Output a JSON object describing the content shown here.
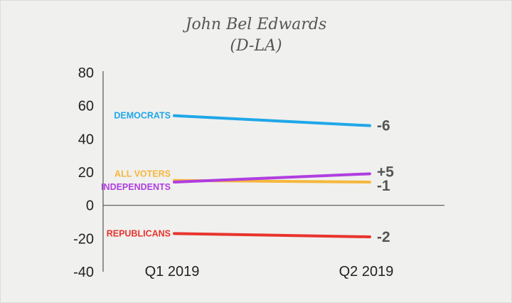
{
  "chart_data": {
    "type": "line",
    "title": "John Bel Edwards",
    "subtitle": "(D-LA)",
    "xlabel": "",
    "ylabel": "",
    "categories": [
      "Q1 2019",
      "Q2 2019"
    ],
    "ylim": [
      -40,
      80
    ],
    "yticks": [
      "80",
      "60",
      "40",
      "20",
      "0",
      "-20",
      "-40"
    ],
    "grid": false,
    "legend": "inline labels at line start",
    "series": [
      {
        "name": "DEMOCRATS",
        "values": [
          54,
          48
        ],
        "change": "-6",
        "color": "#1fa7e8"
      },
      {
        "name": "ALL VOTERS",
        "values": [
          15,
          14
        ],
        "change": "-1",
        "color": "#f6b73c"
      },
      {
        "name": "INDEPENDENTS",
        "values": [
          14,
          19
        ],
        "change": "+5",
        "color": "#b03ee0"
      },
      {
        "name": "REPUBLICANS",
        "values": [
          -17,
          -19
        ],
        "change": "-2",
        "color": "#e8342d"
      }
    ]
  }
}
